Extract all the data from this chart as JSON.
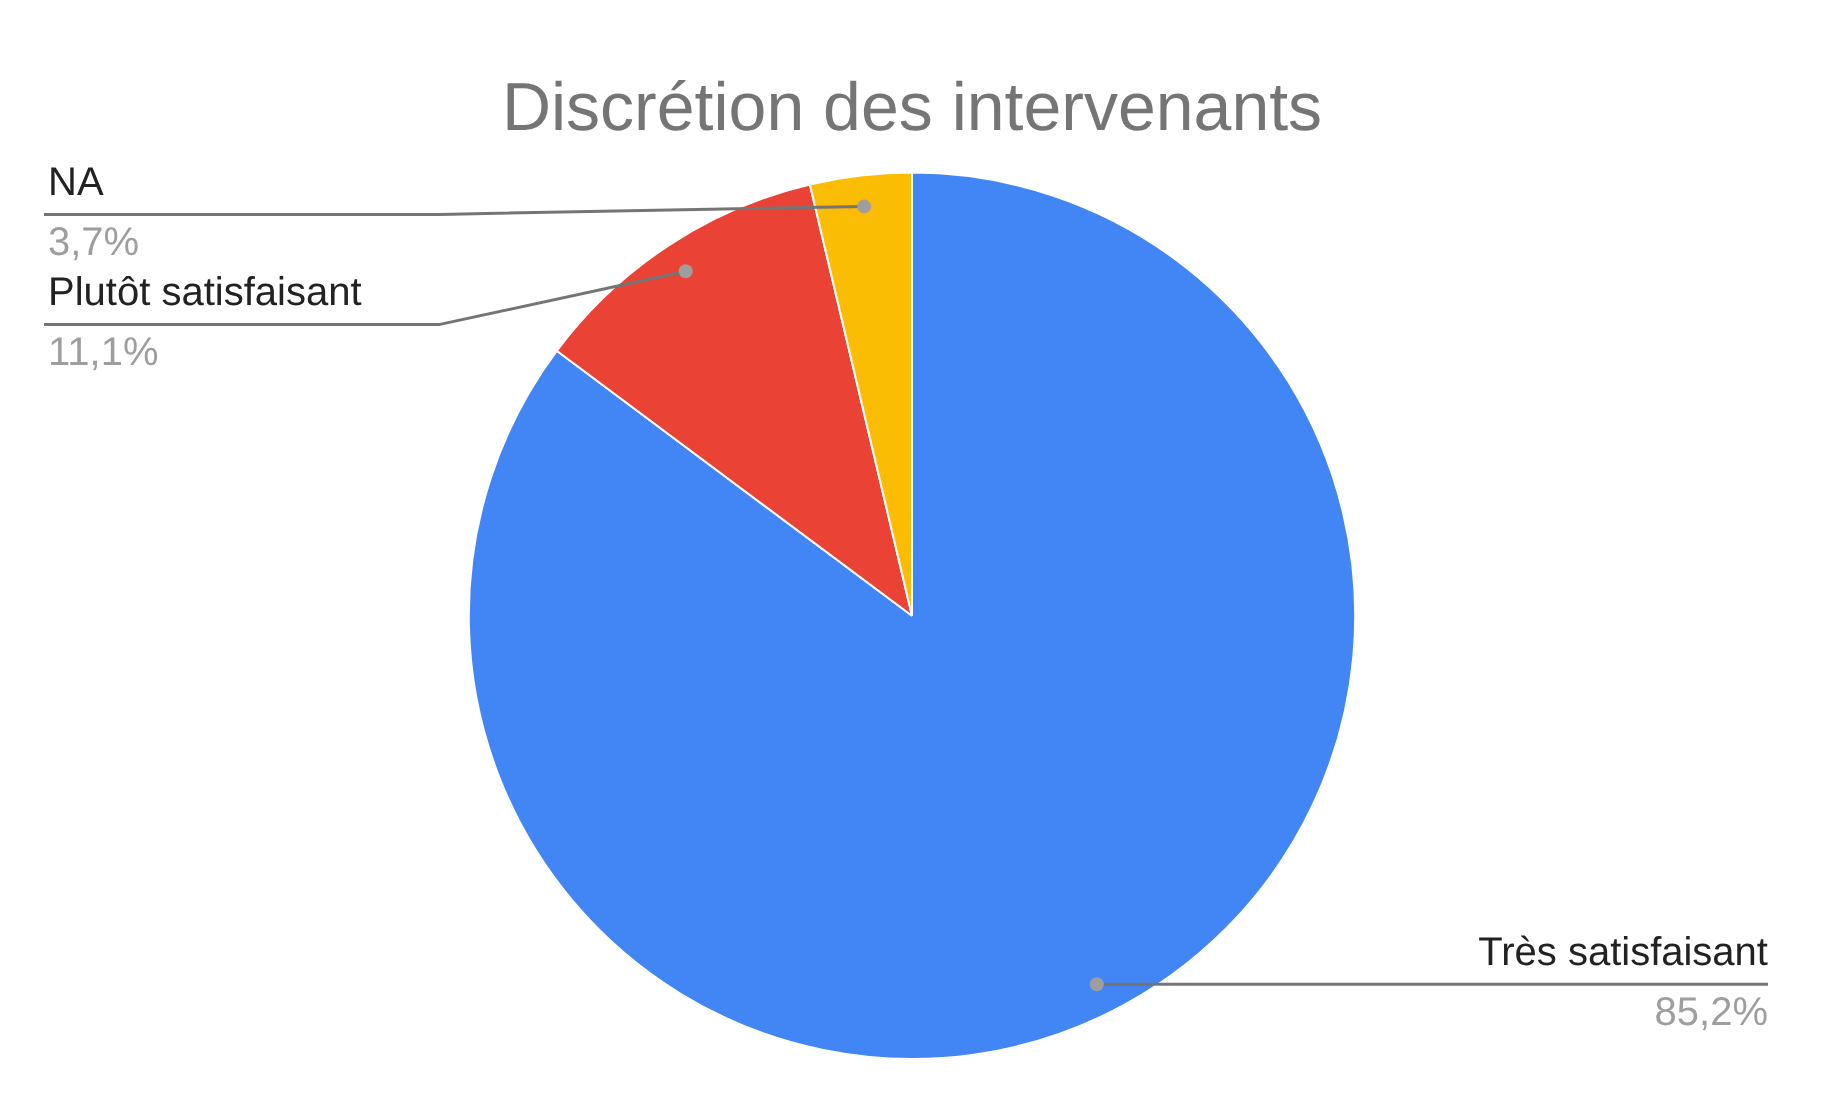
{
  "chart_data": {
    "type": "pie",
    "title": "Discrétion des intervenants",
    "categories": [
      "Très satisfaisant",
      "Plutôt satisfaisant",
      "NA"
    ],
    "values": [
      85.2,
      11.1,
      3.7
    ],
    "colors": [
      "#4285f4",
      "#ea4335",
      "#fbbc04"
    ],
    "value_labels": [
      "85,2%",
      "11,1%",
      "3,7%"
    ],
    "legend": false
  }
}
